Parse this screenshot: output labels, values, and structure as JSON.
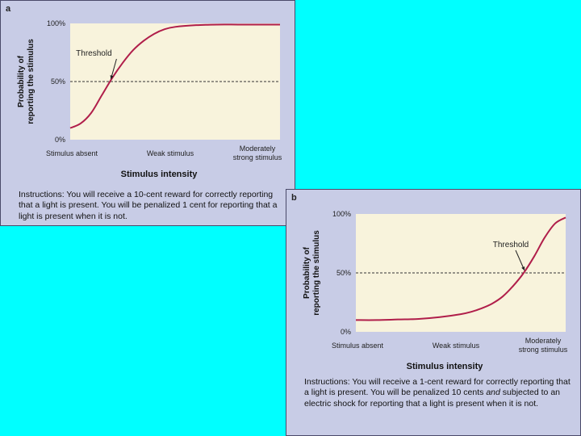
{
  "chart_data": [
    {
      "panel": "a",
      "type": "line",
      "ylabel_line1": "Probability of",
      "ylabel_line2": "reporting the stimulus",
      "xlabel": "Stimulus intensity",
      "x_categories": [
        "Stimulus absent",
        "Weak stimulus",
        "Moderately strong stimulus"
      ],
      "x_category_lines": [
        [
          "Stimulus absent"
        ],
        [
          "Weak stimulus"
        ],
        [
          "Moderately",
          "strong stimulus"
        ]
      ],
      "y_ticks": [
        "100%",
        "50%",
        "0%"
      ],
      "ylim": [
        0,
        100
      ],
      "xlim": [
        0,
        1
      ],
      "threshold_label": "Threshold",
      "threshold_level": 50,
      "series": [
        {
          "x": [
            0,
            0.05,
            0.1,
            0.15,
            0.2,
            0.25,
            0.3,
            0.35,
            0.4,
            0.45,
            0.5,
            0.6,
            0.7,
            0.8,
            0.9,
            1.0
          ],
          "y": [
            10,
            14,
            23,
            38,
            53,
            66,
            77,
            85,
            91,
            95,
            97,
            98.5,
            99,
            99,
            99,
            99
          ]
        }
      ],
      "instructions": "Instructions: You will receive a 10-cent reward for correctly reporting that a light is present. You will be penalized 1 cent for reporting that a light is present when it is not."
    },
    {
      "panel": "b",
      "type": "line",
      "ylabel_line1": "Probability of",
      "ylabel_line2": "reporting the stimulus",
      "xlabel": "Stimulus intensity",
      "x_categories": [
        "Stimulus absent",
        "Weak stimulus",
        "Moderately strong stimulus"
      ],
      "x_category_lines": [
        [
          "Stimulus absent"
        ],
        [
          "Weak stimulus"
        ],
        [
          "Moderately",
          "strong stimulus"
        ]
      ],
      "y_ticks": [
        "100%",
        "50%",
        "0%"
      ],
      "ylim": [
        0,
        100
      ],
      "xlim": [
        0,
        1
      ],
      "threshold_label": "Threshold",
      "threshold_level": 50,
      "series": [
        {
          "x": [
            0,
            0.1,
            0.2,
            0.3,
            0.4,
            0.5,
            0.55,
            0.6,
            0.65,
            0.7,
            0.75,
            0.8,
            0.85,
            0.9,
            0.95,
            1.0
          ],
          "y": [
            10,
            10,
            10.5,
            11,
            12.5,
            15,
            17,
            20,
            24,
            30,
            39,
            50,
            64,
            80,
            92,
            97
          ]
        }
      ],
      "instructions_html": "Instructions: You will receive a 1-cent reward for correctly reporting that a light is present. You will be penalized 10 cents <i>and</i> subjected to an electric shock for reporting that a light is present when it is not.",
      "instructions": "Instructions: You will receive a 1-cent reward for correctly reporting that a light is present. You will be penalized 10 cents and subjected to an electric shock for reporting that a light is present when it is not."
    }
  ],
  "colors": {
    "curve": "#b01e4a",
    "panel_bg": "#c8cce6",
    "plot_bg": "#f8f3dc",
    "page_bg": "#00ffff"
  }
}
